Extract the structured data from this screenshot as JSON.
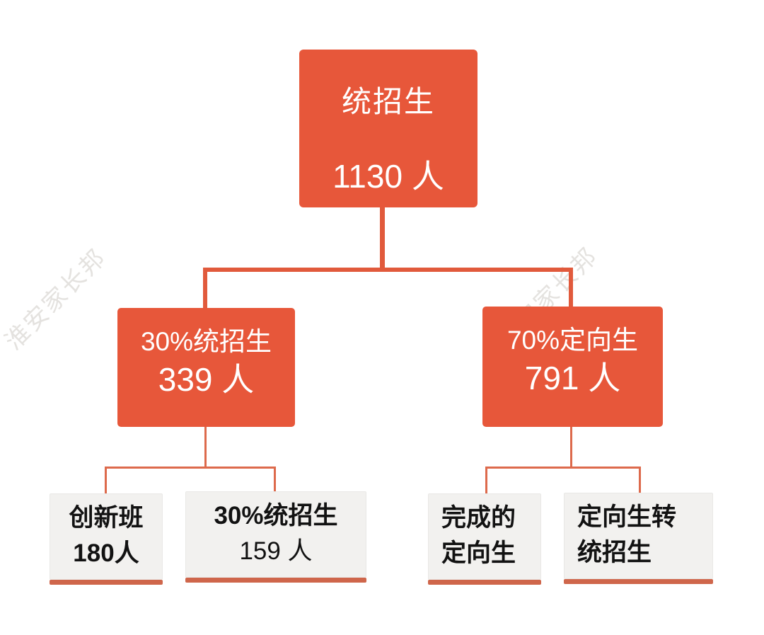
{
  "colors": {
    "box_orange": "#e7573a",
    "connector_orange": "#e15a3c",
    "leaf_background": "#f2f1ef",
    "leaf_underline": "#cf664b",
    "leaf_text": "#121212",
    "node_text": "#ffffff"
  },
  "watermark": {
    "text": "淮安家长邦"
  },
  "tree": {
    "root": {
      "title": "统招生",
      "value": "1130 人"
    },
    "level2": [
      {
        "title": "30%统招生",
        "value": "339 人"
      },
      {
        "title": "70%定向生",
        "value": "791 人"
      }
    ],
    "leaves": [
      {
        "line1": "创新班",
        "line2": "180人"
      },
      {
        "line1": "30%统招生",
        "line2": "159 人"
      },
      {
        "line1": "完成的",
        "line2": "定向生"
      },
      {
        "line1": "定向生转",
        "line2": "统招生"
      }
    ]
  }
}
